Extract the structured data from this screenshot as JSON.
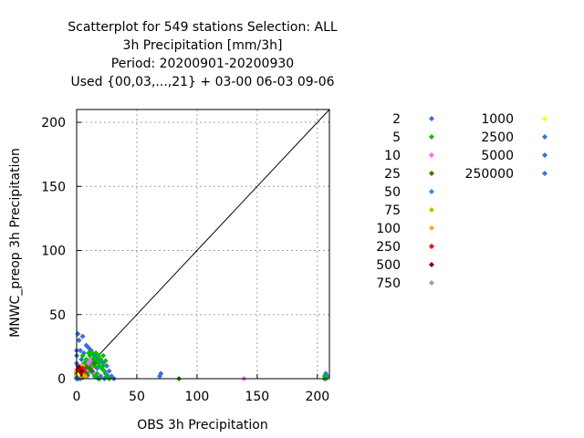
{
  "chart_data": {
    "type": "scatter",
    "title": [
      "Scatterplot for  549 stations Selection: ALL",
      "3h Precipitation [mm/3h]",
      "Period: 20200901-20200930",
      "Used {00,03,...,21} + 03-00 06-03 09-06"
    ],
    "xlabel": "OBS 3h Precipitation",
    "ylabel": "MNWC_preop 3h Precipitation",
    "xlim": [
      0,
      210
    ],
    "ylim": [
      0,
      210
    ],
    "xticks": [
      0,
      50,
      100,
      150,
      200
    ],
    "yticks": [
      0,
      50,
      100,
      150,
      200
    ],
    "grid": true,
    "diagonal": true,
    "legend_placement": "right",
    "series": [
      {
        "name": "2",
        "color": "#3a6fd8",
        "points": [
          [
            1,
            35
          ],
          [
            2,
            30
          ],
          [
            5,
            33
          ],
          [
            8,
            26
          ],
          [
            10,
            24
          ],
          [
            3,
            22
          ],
          [
            6,
            20
          ],
          [
            12,
            22
          ],
          [
            15,
            18
          ],
          [
            18,
            16
          ],
          [
            20,
            14
          ],
          [
            22,
            12
          ],
          [
            25,
            10
          ],
          [
            4,
            15
          ],
          [
            7,
            12
          ],
          [
            1,
            10
          ],
          [
            2,
            8
          ],
          [
            3,
            6
          ],
          [
            9,
            10
          ],
          [
            11,
            6
          ],
          [
            14,
            4
          ],
          [
            16,
            2
          ],
          [
            18,
            0
          ],
          [
            20,
            2
          ],
          [
            24,
            4
          ],
          [
            27,
            6
          ],
          [
            29,
            2
          ],
          [
            31,
            0
          ],
          [
            69,
            2
          ],
          [
            70,
            4
          ],
          [
            208,
            2
          ],
          [
            207,
            4
          ],
          [
            206,
            0
          ],
          [
            1,
            0
          ],
          [
            3,
            0
          ],
          [
            5,
            1
          ],
          [
            0,
            5
          ],
          [
            0,
            12
          ],
          [
            0,
            18
          ],
          [
            0,
            22
          ],
          [
            13,
            14
          ],
          [
            17,
            8
          ],
          [
            23,
            0
          ],
          [
            26,
            2
          ],
          [
            2,
            2
          ],
          [
            4,
            4
          ]
        ]
      },
      {
        "name": "5",
        "color": "#00c000",
        "points": [
          [
            5,
            18
          ],
          [
            8,
            15
          ],
          [
            10,
            14
          ],
          [
            12,
            12
          ],
          [
            15,
            10
          ],
          [
            18,
            12
          ],
          [
            20,
            15
          ],
          [
            22,
            18
          ],
          [
            11,
            18
          ],
          [
            14,
            16
          ],
          [
            16,
            14
          ],
          [
            19,
            10
          ],
          [
            21,
            8
          ],
          [
            23,
            6
          ],
          [
            13,
            10
          ],
          [
            7,
            8
          ],
          [
            9,
            6
          ],
          [
            17,
            4
          ],
          [
            15,
            2
          ],
          [
            19,
            0
          ],
          [
            25,
            2
          ],
          [
            27,
            0
          ],
          [
            207,
            0
          ],
          [
            206,
            2
          ],
          [
            10,
            20
          ],
          [
            13,
            20
          ],
          [
            6,
            12
          ],
          [
            8,
            10
          ],
          [
            12,
            6
          ],
          [
            22,
            10
          ],
          [
            24,
            14
          ],
          [
            16,
            20
          ],
          [
            18,
            18
          ]
        ]
      },
      {
        "name": "10",
        "color": "#ff66ff",
        "points": [
          [
            4,
            10
          ],
          [
            6,
            8
          ],
          [
            8,
            6
          ],
          [
            10,
            12
          ],
          [
            12,
            8
          ],
          [
            14,
            5
          ],
          [
            3,
            3
          ],
          [
            7,
            4
          ],
          [
            9,
            2
          ],
          [
            139,
            0
          ],
          [
            11,
            14
          ],
          [
            5,
            6
          ]
        ]
      },
      {
        "name": "25",
        "color": "#2e7d00",
        "points": [
          [
            3,
            5
          ],
          [
            5,
            7
          ],
          [
            7,
            5
          ],
          [
            9,
            3
          ],
          [
            11,
            8
          ],
          [
            13,
            6
          ],
          [
            85,
            0
          ],
          [
            6,
            2
          ],
          [
            8,
            9
          ],
          [
            15,
            12
          ],
          [
            4,
            1
          ]
        ]
      },
      {
        "name": "50",
        "color": "#1e90ff",
        "points": [
          [
            2,
            5
          ],
          [
            4,
            7
          ],
          [
            6,
            3
          ],
          [
            1,
            2
          ],
          [
            3,
            9
          ]
        ]
      },
      {
        "name": "75",
        "color": "#c0c000",
        "points": [
          [
            2,
            3
          ],
          [
            5,
            4
          ],
          [
            7,
            2
          ],
          [
            1,
            6
          ]
        ]
      },
      {
        "name": "100",
        "color": "#ffb000",
        "points": [
          [
            1,
            5
          ],
          [
            3,
            4
          ],
          [
            4,
            2
          ],
          [
            0,
            7
          ],
          [
            2,
            8
          ],
          [
            5,
            10
          ]
        ]
      },
      {
        "name": "250",
        "color": "#ff0000",
        "points": [
          [
            1,
            7
          ],
          [
            2,
            6
          ],
          [
            4,
            5
          ],
          [
            0,
            3
          ],
          [
            3,
            2
          ],
          [
            5,
            8
          ],
          [
            6,
            6
          ]
        ]
      },
      {
        "name": "500",
        "color": "#800000",
        "points": [
          [
            1,
            4
          ],
          [
            2,
            2
          ],
          [
            3,
            3
          ],
          [
            0,
            1
          ],
          [
            2,
            9
          ],
          [
            4,
            6
          ]
        ]
      },
      {
        "name": "750",
        "color": "#a0a0a0",
        "points": [
          [
            1,
            1
          ],
          [
            2,
            1
          ]
        ]
      },
      {
        "name": "1000",
        "color": "#ffff00",
        "points": [
          [
            0,
            2
          ],
          [
            1,
            3
          ]
        ]
      },
      {
        "name": "2500",
        "color": "#3a6fd8",
        "points": [
          [
            0,
            0
          ],
          [
            1,
            0
          ]
        ]
      },
      {
        "name": "5000",
        "color": "#3a6fd8",
        "points": [
          [
            0,
            1
          ]
        ]
      },
      {
        "name": "250000",
        "color": "#3a6fd8",
        "points": [
          [
            0,
            0
          ]
        ]
      }
    ]
  }
}
